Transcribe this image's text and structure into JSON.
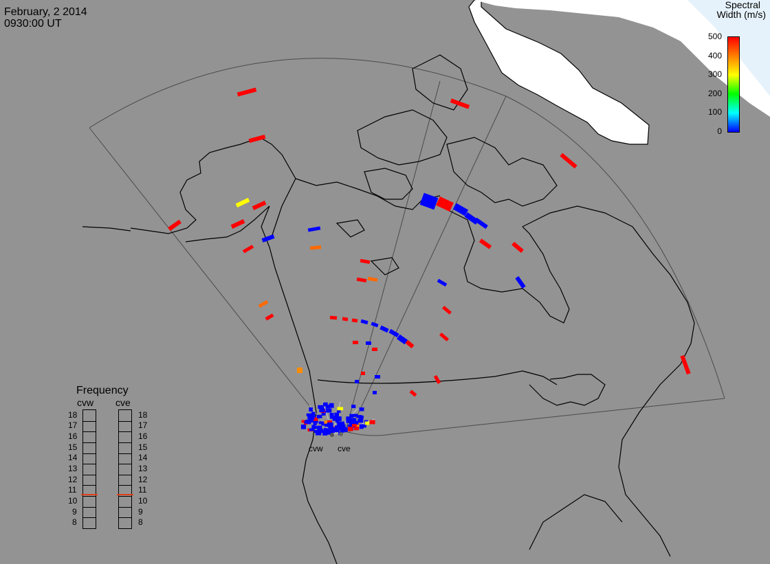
{
  "header": {
    "date": "February, 2 2014",
    "time": "0930:00 UT"
  },
  "colorbar": {
    "title_line1": "Spectral",
    "title_line2": "Width (m/s)",
    "ticks": [
      "500",
      "400",
      "300",
      "200",
      "100",
      "0"
    ],
    "colors": [
      "#ff0000",
      "#ff8000",
      "#ffff00",
      "#00ff00",
      "#00ffff",
      "#0000ff"
    ]
  },
  "frequency_panel": {
    "title": "Frequency",
    "radars": [
      "cvw",
      "cve"
    ],
    "ticks": [
      "18",
      "17",
      "16",
      "15",
      "14",
      "13",
      "12",
      "11",
      "10",
      "9",
      "8"
    ],
    "cvw_mhz": 10.6,
    "cve_mhz": 10.6,
    "marker_color": "#e0401a"
  },
  "radar_sites": {
    "west_label": "cvw",
    "east_label": "cve"
  },
  "map": {
    "background": "#939393",
    "ice_color": "#ffffff",
    "coast_color": "#000000",
    "fov_color": "#4a4a4a"
  }
}
